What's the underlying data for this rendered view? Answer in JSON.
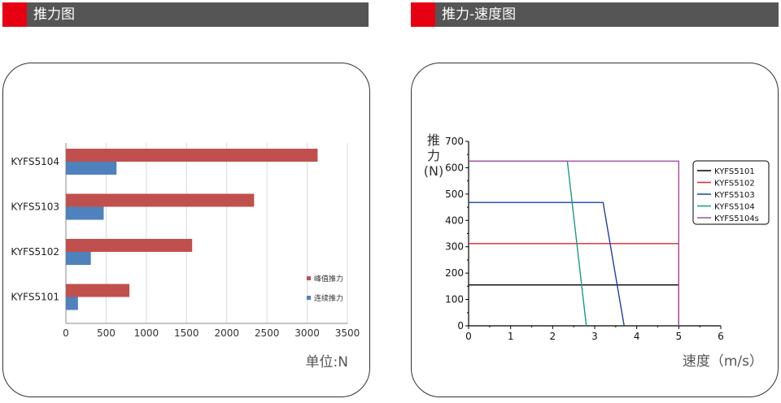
{
  "left": {
    "header_title": "推力图",
    "unit_label": "单位:N",
    "chart_data": {
      "type": "bar",
      "orientation": "horizontal",
      "categories": [
        "KYFS5104",
        "KYFS5103",
        "KYFS5102",
        "KYFS5101"
      ],
      "series": [
        {
          "name": "峰值推力",
          "color": "#c0504d",
          "values": [
            3130,
            2340,
            1570,
            790
          ]
        },
        {
          "name": "连续推力",
          "color": "#4f81bd",
          "values": [
            630,
            470,
            310,
            150
          ]
        }
      ],
      "xlim": [
        0,
        3500
      ],
      "xticks": [
        "0",
        "500",
        "1000",
        "1500",
        "2000",
        "2500",
        "3000",
        "3500"
      ],
      "grid": "vertical",
      "legend": "right"
    }
  },
  "right": {
    "header_title": "推力-速度图",
    "chart_data": {
      "type": "line",
      "ylabel_lines": [
        "推",
        "力",
        "(N)"
      ],
      "xlabel": "速度（m/s）",
      "xlim": [
        0,
        6
      ],
      "ylim": [
        0,
        700
      ],
      "xticks": [
        "0",
        "1",
        "2",
        "3",
        "4",
        "5",
        "6"
      ],
      "yticks": [
        "0",
        "100",
        "200",
        "300",
        "400",
        "500",
        "600",
        "700"
      ],
      "legend": "right",
      "series": [
        {
          "name": "KYFS5101",
          "color": "#000000",
          "points": [
            [
              0,
              155
            ],
            [
              5,
              155
            ],
            [
              5,
              0
            ]
          ]
        },
        {
          "name": "KYFS5102",
          "color": "#e3242b",
          "points": [
            [
              0,
              312
            ],
            [
              5,
              312
            ],
            [
              5,
              0
            ]
          ]
        },
        {
          "name": "KYFS5103",
          "color": "#1f3fa6",
          "points": [
            [
              0,
              468
            ],
            [
              3.2,
              468
            ],
            [
              3.7,
              0
            ]
          ]
        },
        {
          "name": "KYFS5104",
          "color": "#1b998b",
          "points": [
            [
              0,
              625
            ],
            [
              2.35,
              625
            ],
            [
              2.8,
              0
            ]
          ]
        },
        {
          "name": "KYFS5104s",
          "color": "#a64ca6",
          "points": [
            [
              0,
              625
            ],
            [
              5,
              625
            ],
            [
              5,
              0
            ]
          ]
        }
      ]
    }
  }
}
